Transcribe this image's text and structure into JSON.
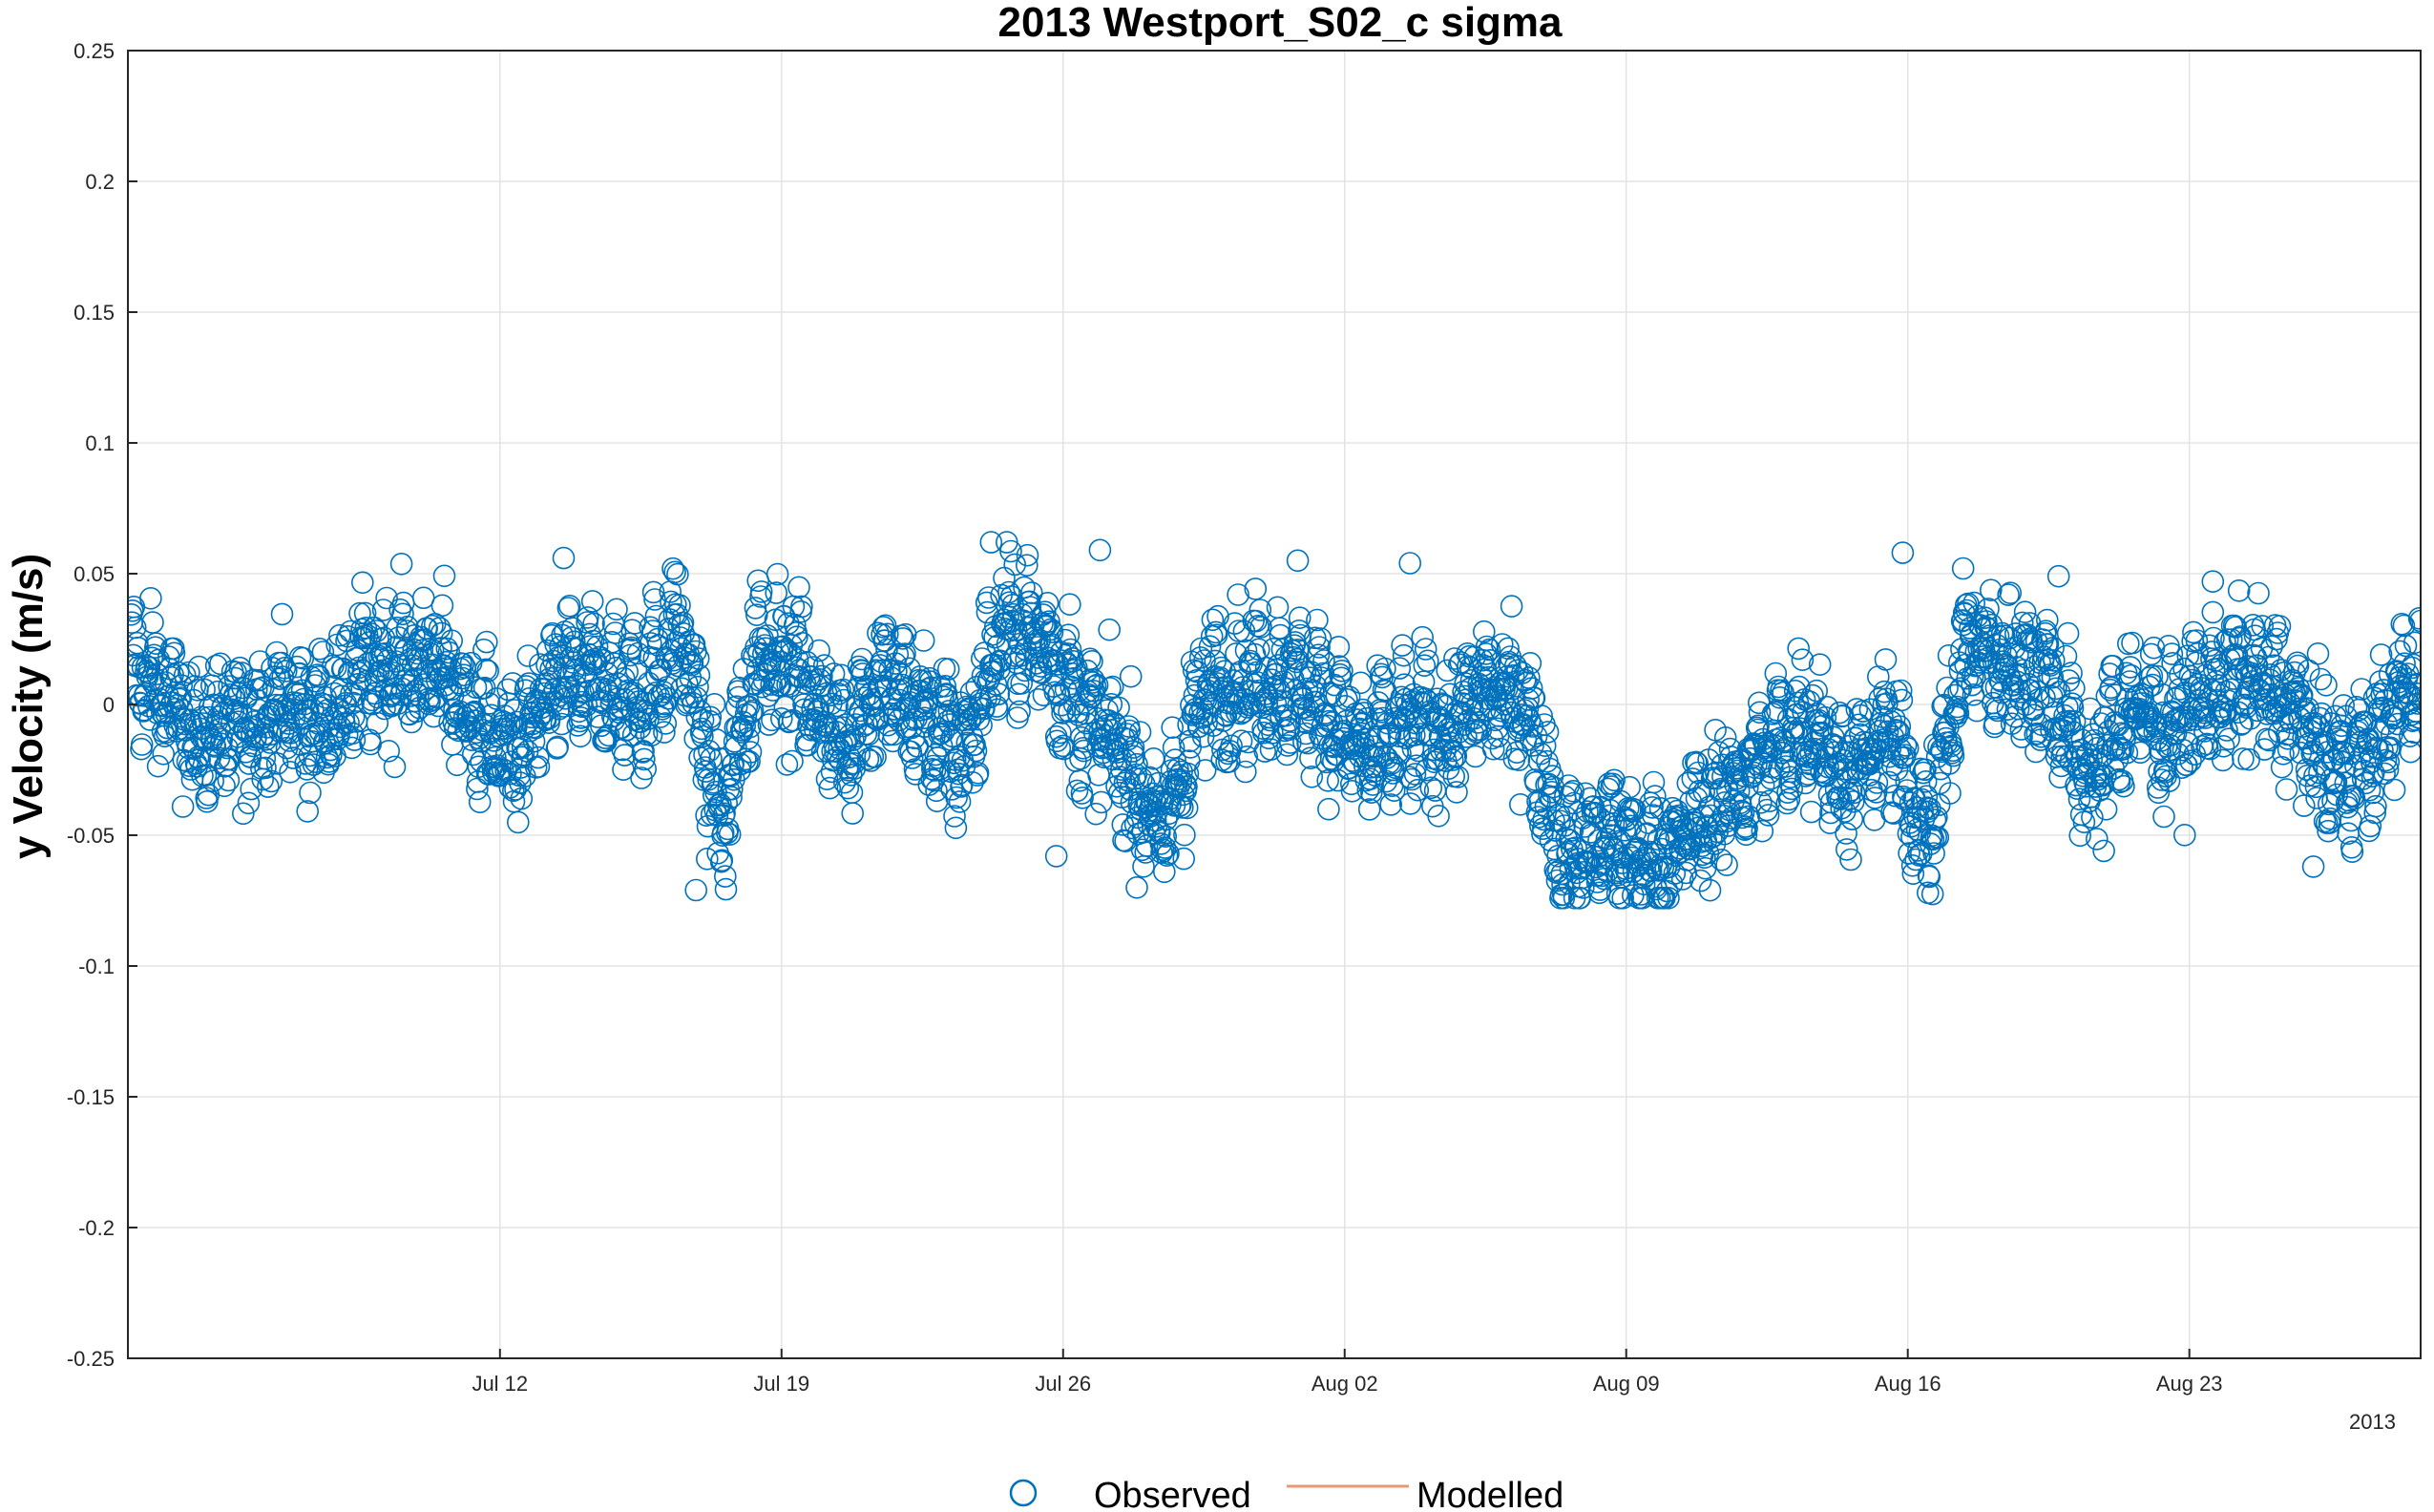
{
  "chart_data": {
    "type": "scatter",
    "title": "2013 Westport_S02_c sigma",
    "ylabel": "y Velocity (m/s)",
    "xlabel": "",
    "x_axis_year_label": "2013",
    "ylim": [
      -0.25,
      0.25
    ],
    "xlim": [
      "2013-07-02T18:00",
      "2013-08-28T18:00"
    ],
    "y_ticks": [
      -0.25,
      -0.2,
      -0.15,
      -0.1,
      -0.05,
      0,
      0.05,
      0.1,
      0.15,
      0.2,
      0.25
    ],
    "y_tick_labels": [
      "-0.25",
      "-0.2",
      "-0.15",
      "-0.1",
      "-0.05",
      "0",
      "0.05",
      "0.1",
      "0.15",
      "0.2",
      "0.25"
    ],
    "x_ticks": [
      "2013-07-12",
      "2013-07-19",
      "2013-07-26",
      "2013-08-02",
      "2013-08-09",
      "2013-08-16",
      "2013-08-23"
    ],
    "x_tick_labels": [
      "Jul 12",
      "Jul 19",
      "Jul 26",
      "Aug 02",
      "Aug 09",
      "Aug 16",
      "Aug 23"
    ],
    "grid": true,
    "legend_position": "bottom",
    "series": [
      {
        "name": "Observed",
        "marker": "circle",
        "color": "#0072BD",
        "trend": [
          [
            "2013-07-02",
            0.018
          ],
          [
            "2013-07-03",
            0.005
          ],
          [
            "2013-07-04",
            -0.012
          ],
          [
            "2013-07-05",
            -0.01
          ],
          [
            "2013-07-06",
            0.0
          ],
          [
            "2013-07-07",
            -0.008
          ],
          [
            "2013-07-08",
            0.012
          ],
          [
            "2013-07-09",
            0.015
          ],
          [
            "2013-07-10",
            0.015
          ],
          [
            "2013-07-11",
            -0.01
          ],
          [
            "2013-07-12",
            -0.02
          ],
          [
            "2013-07-13",
            0.01
          ],
          [
            "2013-07-14",
            0.008
          ],
          [
            "2013-07-15",
            0.0
          ],
          [
            "2013-07-16",
            0.03
          ],
          [
            "2013-07-17",
            -0.05
          ],
          [
            "2013-07-18",
            0.025
          ],
          [
            "2013-07-19",
            0.01
          ],
          [
            "2013-07-20",
            -0.015
          ],
          [
            "2013-07-21",
            0.01
          ],
          [
            "2013-07-22",
            -0.005
          ],
          [
            "2013-07-23",
            -0.02
          ],
          [
            "2013-07-24",
            0.03
          ],
          [
            "2013-07-25",
            0.025
          ],
          [
            "2013-07-26",
            -0.005
          ],
          [
            "2013-07-27",
            -0.02
          ],
          [
            "2013-07-28",
            -0.05
          ],
          [
            "2013-07-29",
            0.005
          ],
          [
            "2013-07-30",
            0.01
          ],
          [
            "2013-07-31",
            0.01
          ],
          [
            "2013-08-01",
            0.0
          ],
          [
            "2013-08-02",
            -0.02
          ],
          [
            "2013-08-03",
            -0.01
          ],
          [
            "2013-08-04",
            -0.01
          ],
          [
            "2013-08-05",
            0.005
          ],
          [
            "2013-08-06",
            0.0
          ],
          [
            "2013-08-07",
            -0.06
          ],
          [
            "2013-08-08",
            -0.05
          ],
          [
            "2013-08-09",
            -0.06
          ],
          [
            "2013-08-10",
            -0.05
          ],
          [
            "2013-08-11",
            -0.035
          ],
          [
            "2013-08-12",
            -0.02
          ],
          [
            "2013-08-13",
            -0.005
          ],
          [
            "2013-08-14",
            -0.03
          ],
          [
            "2013-08-15",
            -0.01
          ],
          [
            "2013-08-16",
            -0.05
          ],
          [
            "2013-08-17",
            0.025
          ],
          [
            "2013-08-18",
            0.015
          ],
          [
            "2013-08-19",
            0.01
          ],
          [
            "2013-08-20",
            -0.03
          ],
          [
            "2013-08-21",
            0.0
          ],
          [
            "2013-08-22",
            -0.01
          ],
          [
            "2013-08-23",
            0.005
          ],
          [
            "2013-08-24",
            0.01
          ],
          [
            "2013-08-25",
            0.0
          ],
          [
            "2013-08-26",
            -0.025
          ],
          [
            "2013-08-27",
            -0.02
          ],
          [
            "2013-08-28",
            0.01
          ]
        ],
        "notable_points": [
          [
            "2013-07-13T14:00",
            0.056
          ],
          [
            "2013-07-16T21:00",
            -0.071
          ],
          [
            "2013-07-24T05:00",
            0.062
          ],
          [
            "2013-07-25T20:00",
            -0.058
          ],
          [
            "2013-07-26T22:00",
            0.059
          ],
          [
            "2013-07-27T20:00",
            -0.07
          ],
          [
            "2013-07-31T20:00",
            0.055
          ],
          [
            "2013-08-03T15:00",
            0.054
          ],
          [
            "2013-08-08T08:00",
            -0.072
          ],
          [
            "2013-08-09T04:00",
            -0.073
          ],
          [
            "2013-08-15T21:00",
            0.058
          ],
          [
            "2013-08-16T12:00",
            -0.072
          ],
          [
            "2013-08-17T09:00",
            0.052
          ],
          [
            "2013-08-19T18:00",
            0.049
          ],
          [
            "2013-08-20T21:00",
            -0.056
          ],
          [
            "2013-08-23T14:00",
            0.047
          ],
          [
            "2013-08-26T02:00",
            -0.062
          ]
        ],
        "points_per_day": 60,
        "spread": 0.016
      },
      {
        "name": "Modelled",
        "marker": "line",
        "color": "#D95319",
        "values": []
      }
    ]
  }
}
